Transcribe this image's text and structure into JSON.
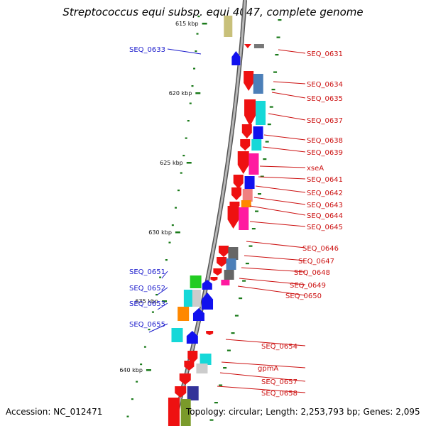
{
  "title": "Streptococcus equi subsp. equi 4047, complete genome",
  "footer": {
    "accession": "Accession: NC_012471",
    "topology": "Topology: circular; Length: 2,253,793 bp; Genes: 2,095"
  },
  "kbp_markers": [
    "615 kbp",
    "620 kbp",
    "625 kbp",
    "630 kbp",
    "635 kbp",
    "640 kbp"
  ],
  "left_labels": [
    "SEQ_0633",
    "SEQ_0651",
    "SEQ_0652",
    "SEQ_0653",
    "SEQ_0655"
  ],
  "right_labels": [
    "SEQ_0631",
    "SEQ_0634",
    "SEQ_0635",
    "SEQ_0637",
    "SEQ_0638",
    "SEQ_0639",
    "xseA",
    "SEQ_0641",
    "SEQ_0642",
    "SEQ_0643",
    "SEQ_0644",
    "SEQ_0645",
    "SEQ_0646",
    "SEQ_0647",
    "SEQ_0648",
    "SEQ_0649",
    "SEQ_0650",
    "SEQ_0654",
    "gpmA",
    "SEQ_0657",
    "SEQ_0658"
  ],
  "colors": {
    "forward_label": "#1a1acc",
    "reverse_label": "#cc1111",
    "backbone": "#888888",
    "tick": "#1a7a1a",
    "gene_reverse": "#ee1111",
    "gene_forward": "#1111ee"
  }
}
